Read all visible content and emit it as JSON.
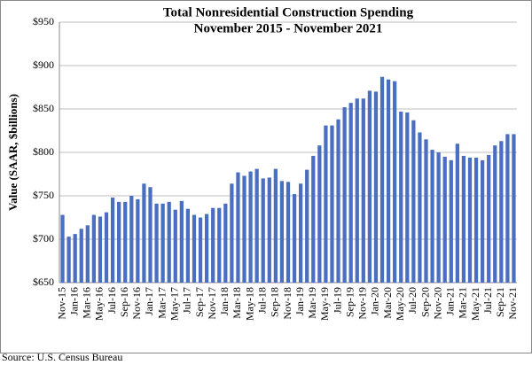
{
  "chart_data": {
    "type": "bar",
    "title": "Total Nonresidential Construction Spending",
    "subtitle": "November 2015 - November 2021",
    "y_label": "Value (SAAR, $billions)",
    "source": "Source:  U.S. Census Bureau",
    "color": "#4a6fc0",
    "grid": true,
    "categories": [
      "Nov-15",
      null,
      "Jan-16",
      null,
      "Mar-16",
      null,
      "May-16",
      null,
      "Jul-16",
      null,
      "Sep-16",
      null,
      "Nov-16",
      null,
      "Jan-17",
      null,
      "Mar-17",
      null,
      "May-17",
      null,
      "Jul-17",
      null,
      "Sep-17",
      null,
      "Nov-17",
      null,
      "Jan-18",
      null,
      "Mar-18",
      null,
      "May-18",
      null,
      "Jul-18",
      null,
      "Sep-18",
      null,
      "Nov-18",
      null,
      "Jan-19",
      null,
      "Mar-19",
      null,
      "May-19",
      null,
      "Jul-19",
      null,
      "Sep-19",
      null,
      "Nov-19",
      null,
      "Jan-20",
      null,
      "Mar-20",
      null,
      "May-20",
      null,
      "Jul-20",
      null,
      "Sep-20",
      null,
      "Nov-20",
      null,
      "Jan-21",
      null,
      "Mar-21",
      null,
      "May-21",
      null,
      "Jul-21",
      null,
      "Sep-21",
      null,
      "Nov-21"
    ],
    "values": [
      728,
      703,
      706,
      712,
      716,
      728,
      726,
      731,
      748,
      743,
      743,
      750,
      746,
      764,
      760,
      741,
      741,
      743,
      734,
      744,
      735,
      728,
      725,
      729,
      736,
      736,
      741,
      764,
      777,
      773,
      778,
      781,
      770,
      771,
      781,
      767,
      766,
      752,
      764,
      780,
      796,
      808,
      831,
      831,
      838,
      852,
      857,
      862,
      862,
      871,
      870,
      887,
      884,
      882,
      847,
      846,
      837,
      823,
      815,
      803,
      800,
      795,
      791,
      810,
      796,
      794,
      794,
      791,
      797,
      808,
      813,
      821,
      821
    ],
    "ylim": [
      650,
      950
    ],
    "yticks": [
      {
        "value": 650,
        "label": "$650"
      },
      {
        "value": 700,
        "label": "$700"
      },
      {
        "value": 750,
        "label": "$750"
      },
      {
        "value": 800,
        "label": "$800"
      },
      {
        "value": 850,
        "label": "$850"
      },
      {
        "value": 900,
        "label": "$900"
      },
      {
        "value": 950,
        "label": "$950"
      }
    ]
  }
}
